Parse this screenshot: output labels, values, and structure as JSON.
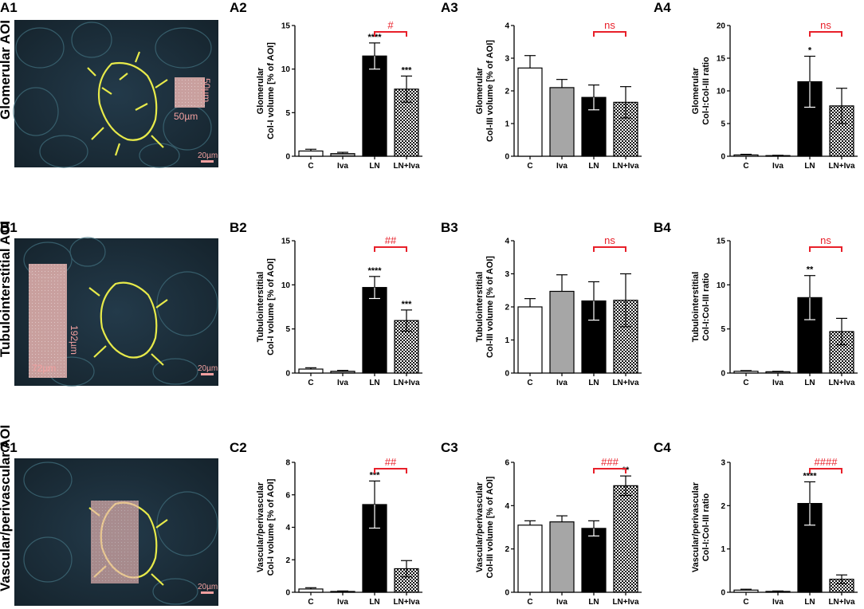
{
  "colors": {
    "sig_bracket": "#e8202a",
    "bar_C": "#ffffff",
    "bar_Iva": "#a6a6a6",
    "bar_LN": "#000000",
    "bar_LNIva": "checkered",
    "roi": "#e8b4b0"
  },
  "image_panels": [
    {
      "label": "A1",
      "side_label": "Glomerular AOI",
      "roi_labels": [
        "50µm",
        "50µm"
      ],
      "scale_label": "20µm"
    },
    {
      "label": "B1",
      "side_label": "Tubulointerstitial AOI",
      "roi_labels": [
        "192µm",
        "72µm"
      ],
      "scale_label": "20µm"
    },
    {
      "label": "C1",
      "side_label": "Vascular/perivascular AOI",
      "roi_labels": [],
      "scale_label": "20µm"
    }
  ],
  "chart_data": [
    {
      "label": "A2",
      "type": "bar",
      "categories": [
        "C",
        "Iva",
        "LN",
        "LN+Iva"
      ],
      "values": [
        0.6,
        0.3,
        11.5,
        7.7
      ],
      "errors": [
        0.2,
        0.15,
        1.5,
        1.5
      ],
      "ylabel": [
        "Glomerular",
        "Col-I volume [% of AOI]"
      ],
      "ylim": [
        0,
        15
      ],
      "yticks": [
        "0",
        "5",
        "10",
        "15"
      ],
      "stars": [
        "",
        "",
        "****",
        "***"
      ],
      "sig_label": "#"
    },
    {
      "label": "A3",
      "type": "bar",
      "categories": [
        "C",
        "Iva",
        "LN",
        "LN+Iva"
      ],
      "values": [
        2.7,
        2.1,
        1.8,
        1.65
      ],
      "errors": [
        0.38,
        0.25,
        0.38,
        0.48
      ],
      "ylabel": [
        "Glomerular",
        "Col-III volume [% of AOI]"
      ],
      "ylim": [
        0,
        4
      ],
      "yticks": [
        "0",
        "1",
        "2",
        "3",
        "4"
      ],
      "stars": [
        "",
        "",
        "",
        ""
      ],
      "sig_label": "ns"
    },
    {
      "label": "A4",
      "type": "bar",
      "categories": [
        "C",
        "Iva",
        "LN",
        "LN+Iva"
      ],
      "values": [
        0.2,
        0.1,
        11.4,
        7.7
      ],
      "errors": [
        0.1,
        0.05,
        3.9,
        2.7
      ],
      "ylabel": [
        "Glomerular",
        "Col-I:Col-III ratio"
      ],
      "ylim": [
        0,
        20
      ],
      "yticks": [
        "0",
        "5",
        "10",
        "15",
        "20"
      ],
      "stars": [
        "",
        "",
        "*",
        ""
      ],
      "sig_label": "ns"
    },
    {
      "label": "B2",
      "type": "bar",
      "categories": [
        "C",
        "Iva",
        "LN",
        "LN+Iva"
      ],
      "values": [
        0.45,
        0.2,
        9.7,
        5.95
      ],
      "errors": [
        0.15,
        0.1,
        1.25,
        1.2
      ],
      "ylabel": [
        "Tubulointerstitial",
        "Col-I volume [% of AOI]"
      ],
      "ylim": [
        0,
        15
      ],
      "yticks": [
        "0",
        "5",
        "10",
        "15"
      ],
      "stars": [
        "",
        "",
        "****",
        "***"
      ],
      "sig_label": "##"
    },
    {
      "label": "B3",
      "type": "bar",
      "categories": [
        "C",
        "Iva",
        "LN",
        "LN+Iva"
      ],
      "values": [
        2.0,
        2.47,
        2.18,
        2.2
      ],
      "errors": [
        0.25,
        0.5,
        0.58,
        0.8
      ],
      "ylabel": [
        "Tubulointerstitial",
        "Col-III volume [% of AOI]"
      ],
      "ylim": [
        0,
        4
      ],
      "yticks": [
        "0",
        "1",
        "2",
        "3",
        "4"
      ],
      "stars": [
        "",
        "",
        "",
        ""
      ],
      "sig_label": "ns"
    },
    {
      "label": "B4",
      "type": "bar",
      "categories": [
        "C",
        "Iva",
        "LN",
        "LN+Iva"
      ],
      "values": [
        0.2,
        0.15,
        8.55,
        4.7
      ],
      "errors": [
        0.08,
        0.05,
        2.5,
        1.5
      ],
      "ylabel": [
        "Tubulointerstitial",
        "Col-I:Col-III ratio"
      ],
      "ylim": [
        0,
        15
      ],
      "yticks": [
        "0",
        "5",
        "10",
        "15"
      ],
      "stars": [
        "",
        "",
        "**",
        ""
      ],
      "sig_label": "ns"
    },
    {
      "label": "C2",
      "type": "bar",
      "categories": [
        "C",
        "Iva",
        "LN",
        "LN+Iva"
      ],
      "values": [
        0.2,
        0.05,
        5.4,
        1.45
      ],
      "errors": [
        0.08,
        0.03,
        1.45,
        0.5
      ],
      "ylabel": [
        "Vascular/perivascular",
        "Col-I volume [% of AOI]"
      ],
      "ylim": [
        0,
        8
      ],
      "yticks": [
        "0",
        "2",
        "4",
        "6",
        "8"
      ],
      "stars": [
        "",
        "",
        "***",
        ""
      ],
      "sig_label": "##"
    },
    {
      "label": "C3",
      "type": "bar",
      "categories": [
        "C",
        "Iva",
        "LN",
        "LN+Iva"
      ],
      "values": [
        3.1,
        3.25,
        2.95,
        4.92
      ],
      "errors": [
        0.2,
        0.28,
        0.35,
        0.45
      ],
      "ylabel": [
        "Vascular/perivascular",
        "Col-III volume [% of AOI]"
      ],
      "ylim": [
        0,
        6
      ],
      "yticks": [
        "0",
        "2",
        "4",
        "6"
      ],
      "stars": [
        "",
        "",
        "",
        "**"
      ],
      "sig_label": "###"
    },
    {
      "label": "C4",
      "type": "bar",
      "categories": [
        "C",
        "Iva",
        "LN",
        "LN+Iva"
      ],
      "values": [
        0.05,
        0.02,
        2.05,
        0.3
      ],
      "errors": [
        0.02,
        0.01,
        0.5,
        0.1
      ],
      "ylabel": [
        "Vascular/perivascular",
        "Col-I:Col-III ratio"
      ],
      "ylim": [
        0,
        3
      ],
      "yticks": [
        "0",
        "1",
        "2",
        "3"
      ],
      "stars": [
        "",
        "",
        "****",
        ""
      ],
      "sig_label": "####"
    }
  ]
}
